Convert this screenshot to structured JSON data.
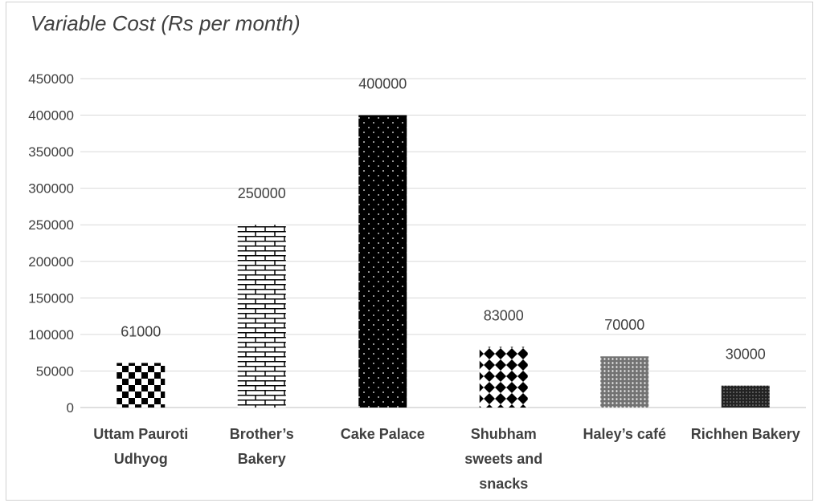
{
  "chart_data": {
    "type": "bar",
    "title": "Variable Cost (Rs per month)",
    "xlabel": "",
    "ylabel": "",
    "categories": [
      "Uttam Pauroti Udhyog",
      "Brother’s Bakery",
      "Cake Palace",
      "Shubham sweets and snacks",
      "Haley’s café",
      "Richhen Bakery"
    ],
    "category_lines": [
      [
        "Uttam Pauroti",
        "Udhyog"
      ],
      [
        "Brother’s",
        "Bakery"
      ],
      [
        "Cake Palace"
      ],
      [
        "Shubham",
        "sweets and",
        "snacks"
      ],
      [
        "Haley’s café"
      ],
      [
        "Richhen Bakery"
      ]
    ],
    "values": [
      61000,
      250000,
      400000,
      83000,
      70000,
      30000
    ],
    "data_labels": [
      "61000",
      "250000",
      "400000",
      "83000",
      "70000",
      "30000"
    ],
    "ylim": [
      0,
      450000
    ],
    "yticks": [
      0,
      50000,
      100000,
      150000,
      200000,
      250000,
      300000,
      350000,
      400000,
      450000
    ],
    "ytick_labels": [
      "0",
      "50000",
      "100000",
      "150000",
      "200000",
      "250000",
      "300000",
      "350000",
      "400000",
      "450000"
    ],
    "grid": true,
    "legend": "none",
    "patterns": [
      "checker",
      "brick",
      "dots",
      "diamonds",
      "fine-grid",
      "dense-dots"
    ],
    "colors": {
      "bar": "#000000",
      "grid": "#d9d9d9",
      "text": "#404040"
    }
  }
}
